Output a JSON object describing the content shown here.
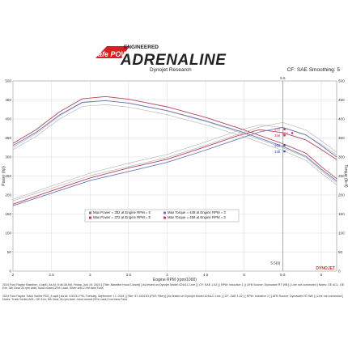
{
  "logo": {
    "brand": "afe POWER",
    "tagline": "ENGINEERED",
    "name": "ADRENALINE"
  },
  "header": {
    "left": "Dynojet Research",
    "right": "CF: SAE Smoothing: 5"
  },
  "chart_data": {
    "type": "line",
    "xlabel": "Engine RPM (rpm/1000)",
    "ylabel_left": "Power (hp)",
    "ylabel_right": "Torque (lb-ft)",
    "xlim": [
      2,
      6.2
    ],
    "ylim": [
      0,
      500
    ],
    "x_ticks": [
      "2",
      "2.5",
      "3",
      "3.5",
      "4",
      "4.5",
      "5",
      "5.5",
      "6"
    ],
    "y_ticks": [
      "0",
      "50",
      "100",
      "150",
      "200",
      "250",
      "300",
      "350",
      "400",
      "450",
      "500"
    ],
    "cursor_rpm": 5.5,
    "cursor_label": "5.5",
    "cursor_rpm_label": "5.5(9)",
    "series": [
      {
        "name": "Max Power = 372 at Engine RPM = 5",
        "kind": "power",
        "color": "#b7425a",
        "x": [
          2.0,
          2.5,
          3.0,
          3.5,
          4.0,
          4.5,
          4.9,
          5.2,
          5.5,
          5.8,
          6.0,
          6.2
        ],
        "y": [
          176,
          211,
          245,
          271,
          294,
          327,
          355,
          372,
          364,
          345,
          320,
          293
        ]
      },
      {
        "name": "Max Torque = 459 at Engine RPM = 3",
        "kind": "torque",
        "color": "#b7425a",
        "x": [
          2.0,
          2.3,
          2.6,
          2.9,
          3.2,
          3.5,
          4.0,
          4.5,
          5.0,
          5.5,
          5.8,
          6.0,
          6.2
        ],
        "y": [
          336,
          372,
          418,
          453,
          459,
          452,
          432,
          404,
          371,
          335,
          310,
          275,
          243
        ]
      },
      {
        "name": "Max Power = 382 at Engine RPM = 5",
        "kind": "power",
        "color": "#6c79b4",
        "x": [
          2.0,
          2.5,
          3.0,
          3.5,
          4.0,
          4.5,
          4.9,
          5.2,
          5.5,
          5.8,
          6.0,
          6.2
        ],
        "y": [
          172,
          205,
          238,
          262,
          286,
          318,
          346,
          366,
          378,
          358,
          330,
          300
        ]
      },
      {
        "name": "Max Torque = 448 at Engine RPM = 3",
        "kind": "torque",
        "color": "#6c79b4",
        "x": [
          2.0,
          2.3,
          2.6,
          2.9,
          3.2,
          3.5,
          4.0,
          4.5,
          5.0,
          5.5,
          5.8,
          6.0,
          6.2
        ],
        "y": [
          330,
          365,
          410,
          444,
          448,
          442,
          422,
          395,
          364,
          328,
          302,
          268,
          237
        ]
      }
    ],
    "annotations": [
      {
        "text": "372",
        "x": 5.5,
        "y": 372,
        "color": "#c0395b"
      },
      {
        "text": "356",
        "x": 5.5,
        "y": 356,
        "color": "#c0395b"
      },
      {
        "text": "354",
        "x": 5.6,
        "y": 362,
        "color": "#c0395b"
      },
      {
        "text": "356",
        "x": 5.5,
        "y": 330,
        "color": "#3b4fa8"
      },
      {
        "text": "338",
        "x": 5.5,
        "y": 314,
        "color": "#3b4fa8"
      }
    ],
    "legend_position": "center"
  },
  "footer": {
    "line1": "2024 Ford Raptor Baseline_4.wp8 [ As At: 9:46:38 AM, Friday, July 19, 2024 ] [Title: Baseline Hood Closed] [ As tested on Dynojet Model 424xLC Line ] [ CF: SAE 1.02 ] [ RPM: Inductive 1 ] [ AFB Source: Dynoware RT WB ] [ Line not connected ] Notes: OE ACL, OE Exh, 5th Gear 2k rpm start, hood closed,20% Load, Silver and 2 red fans Fans",
    "line2": "2024 Ford Raptor Track Series PDS_4.wp8 [ As At: 3:53:51 PM, Tuesday, September 17, 2024 ] [Title: 57-10021D (PDS Filter)] [ As tested on Dynojet Model 424xLC Line ] [ CF: SAE 1.02 ] [ RPM: Inductive 1 ] [ AFB Source: Dynoware RT WB ] [ Line not connected ] Notes: Track Series AOL, OE Exh, 5th Gear 2k rpm start, hood closed,20% Load,2 red fans Fans"
  }
}
